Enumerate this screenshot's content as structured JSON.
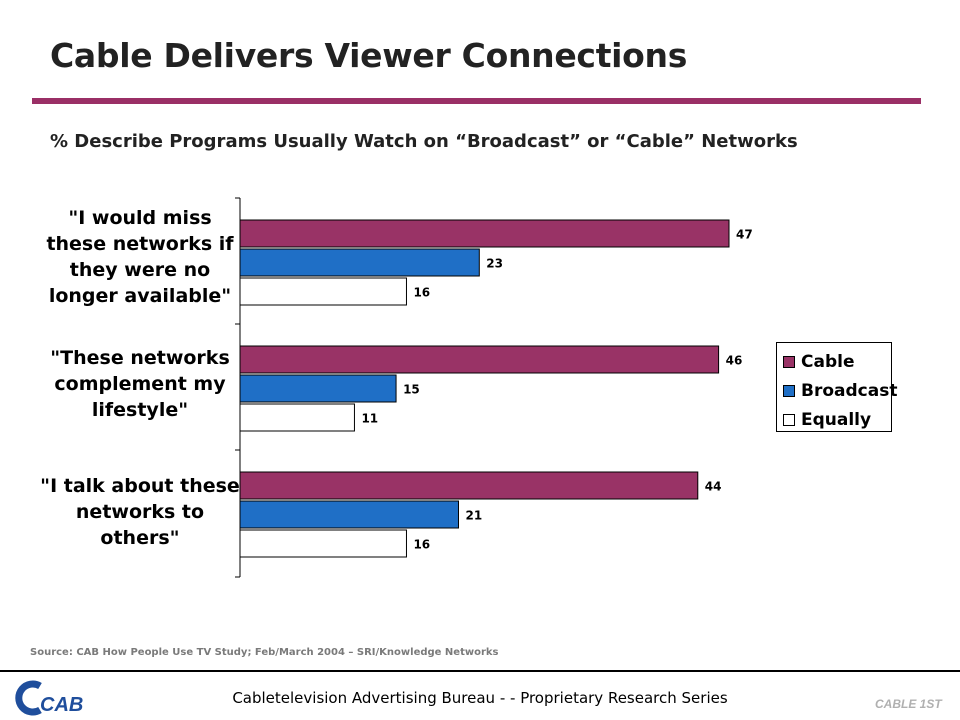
{
  "header": {
    "title": "Cable Delivers Viewer Connections",
    "subtitle": "% Describe Programs Usually Watch on “Broadcast” or “Cable” Networks"
  },
  "colors": {
    "accent": "#9a2f66",
    "cable": "#993366",
    "broadcast": "#1f6fc6",
    "equally": "#ffffff"
  },
  "chart_data": {
    "type": "bar",
    "orientation": "horizontal",
    "categories": [
      "\"I would miss these networks if they were no longer available\"",
      "\"These networks complement my lifestyle\"",
      "\"I talk about these networks to others\""
    ],
    "category_lines": [
      [
        "\"I would miss",
        "these networks if",
        "they were no",
        "longer available\""
      ],
      [
        "\"These networks",
        "complement my",
        "lifestyle\""
      ],
      [
        "\"I talk about these",
        "networks to",
        "others\""
      ]
    ],
    "series": [
      {
        "name": "Cable",
        "values": [
          47,
          46,
          44
        ]
      },
      {
        "name": "Broadcast",
        "values": [
          23,
          15,
          21
        ]
      },
      {
        "name": "Equally",
        "values": [
          16,
          11,
          16
        ]
      }
    ],
    "xlim": [
      0,
      50
    ],
    "grid": false,
    "legend_position": "right"
  },
  "footer": {
    "source": "Source: CAB How People Use TV Study; Feb/March 2004 – SRI/Knowledge Networks",
    "org": "Cabletelevision Advertising Bureau - - Proprietary Research Series",
    "logo_left": "CAB",
    "logo_right": "CABLE 1ST"
  }
}
